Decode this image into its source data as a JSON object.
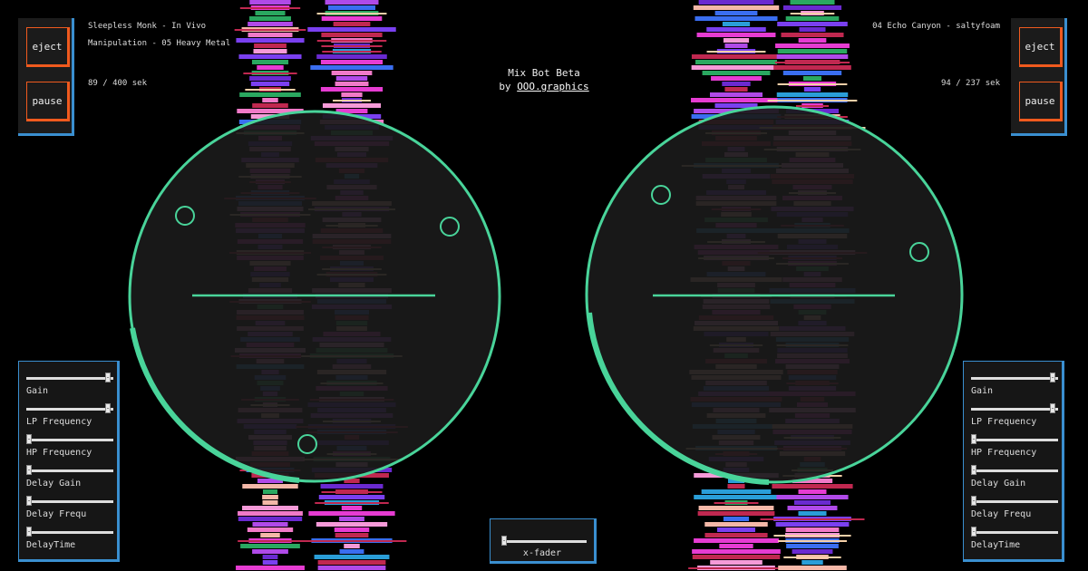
{
  "header": {
    "title": "Mix Bot Beta",
    "byline_prefix": "by ",
    "byline_link": "OOO.graphics"
  },
  "colors": {
    "accent": "#49d49a",
    "panel_border": "#3a8fd0",
    "button_border": "#f05a1e",
    "disc_fill": "#1a1a1a"
  },
  "deck_left": {
    "track_line1": "Sleepless Monk - In Vivo",
    "track_line2": "Manipulation - 05 Heavy Metal",
    "progress": "89 / 400 sek",
    "position_sec": 89,
    "duration_sec": 400,
    "eject_label": "eject",
    "pause_label": "pause",
    "controls": [
      {
        "label": "Gain",
        "value": 0.97
      },
      {
        "label": "LP Frequency",
        "value": 0.97
      },
      {
        "label": "HP Frequency",
        "value": 0.0
      },
      {
        "label": "Delay Gain",
        "value": 0.0
      },
      {
        "label": "Delay Frequ",
        "value": 0.0
      },
      {
        "label": "DelayTime",
        "value": 0.0
      }
    ]
  },
  "deck_right": {
    "track_line1": "04 Echo Canyon - saltyfoam",
    "progress": "94 / 237 sek",
    "position_sec": 94,
    "duration_sec": 237,
    "eject_label": "eject",
    "pause_label": "pause",
    "controls": [
      {
        "label": "Gain",
        "value": 0.97
      },
      {
        "label": "LP Frequency",
        "value": 0.97
      },
      {
        "label": "HP Frequency",
        "value": 0.0
      },
      {
        "label": "Delay Gain",
        "value": 0.0
      },
      {
        "label": "Delay Frequ",
        "value": 0.0
      },
      {
        "label": "DelayTime",
        "value": 0.0
      }
    ]
  },
  "xfader": {
    "label": "x-fader",
    "value": 0.0
  }
}
